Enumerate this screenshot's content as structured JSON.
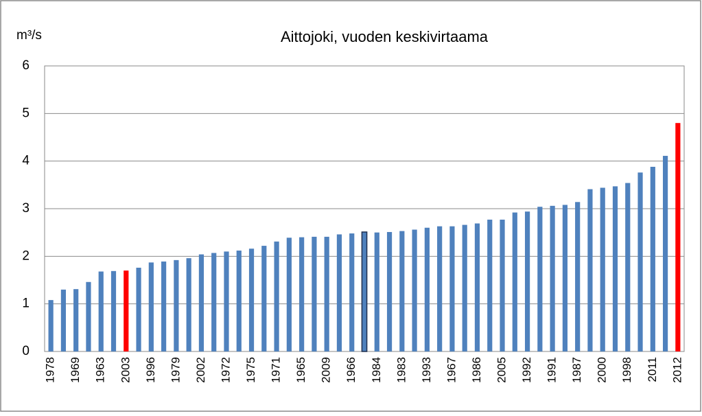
{
  "chart_data": {
    "type": "bar",
    "title": "Aittojoki, vuoden keskivirtaama",
    "ylabel": "m³/s",
    "categories": [
      "1978",
      null,
      "1969",
      null,
      "1963",
      null,
      "2003",
      null,
      "1996",
      null,
      "1979",
      null,
      "2002",
      null,
      "1972",
      null,
      "1975",
      null,
      "1971",
      null,
      "1965",
      null,
      "2009",
      null,
      "1966",
      null,
      "1984",
      null,
      "1983",
      null,
      "1993",
      null,
      "1967",
      null,
      "1986",
      null,
      "2005",
      null,
      "1992",
      null,
      "1991",
      null,
      "1987",
      null,
      "2000",
      null,
      "1998",
      null,
      "2011",
      null,
      "2012"
    ],
    "values": [
      1.08,
      1.3,
      1.31,
      1.46,
      1.68,
      1.69,
      1.7,
      1.76,
      1.87,
      1.89,
      1.92,
      1.96,
      2.04,
      2.07,
      2.1,
      2.12,
      2.16,
      2.22,
      2.31,
      2.39,
      2.4,
      2.41,
      2.41,
      2.46,
      2.48,
      2.51,
      2.5,
      2.51,
      2.53,
      2.56,
      2.6,
      2.63,
      2.63,
      2.66,
      2.69,
      2.77,
      2.77,
      2.92,
      2.94,
      3.04,
      3.06,
      3.08,
      3.14,
      3.41,
      3.44,
      3.47,
      3.54,
      3.76,
      3.88,
      4.11,
      4.8
    ],
    "color": "#4f81bd",
    "colors": [
      "#4f81bd",
      "#4f81bd",
      "#4f81bd",
      "#4f81bd",
      "#4f81bd",
      "#4f81bd",
      "#ff0000",
      "#4f81bd",
      "#4f81bd",
      "#4f81bd",
      "#4f81bd",
      "#4f81bd",
      "#4f81bd",
      "#4f81bd",
      "#4f81bd",
      "#4f81bd",
      "#4f81bd",
      "#4f81bd",
      "#4f81bd",
      "#4f81bd",
      "#4f81bd",
      "#4f81bd",
      "#4f81bd",
      "#4f81bd",
      "#4f81bd",
      "#4f81bd",
      "#4f81bd",
      "#4f81bd",
      "#4f81bd",
      "#4f81bd",
      "#4f81bd",
      "#4f81bd",
      "#4f81bd",
      "#4f81bd",
      "#4f81bd",
      "#4f81bd",
      "#4f81bd",
      "#4f81bd",
      "#4f81bd",
      "#4f81bd",
      "#4f81bd",
      "#4f81bd",
      "#4f81bd",
      "#4f81bd",
      "#4f81bd",
      "#4f81bd",
      "#4f81bd",
      "#4f81bd",
      "#4f81bd",
      "#4f81bd",
      "#ff0000"
    ],
    "outlined": [
      25
    ],
    "ylim": [
      0,
      6
    ],
    "yticks": [
      0,
      1,
      2,
      3,
      4,
      5,
      6
    ],
    "grid": true
  }
}
